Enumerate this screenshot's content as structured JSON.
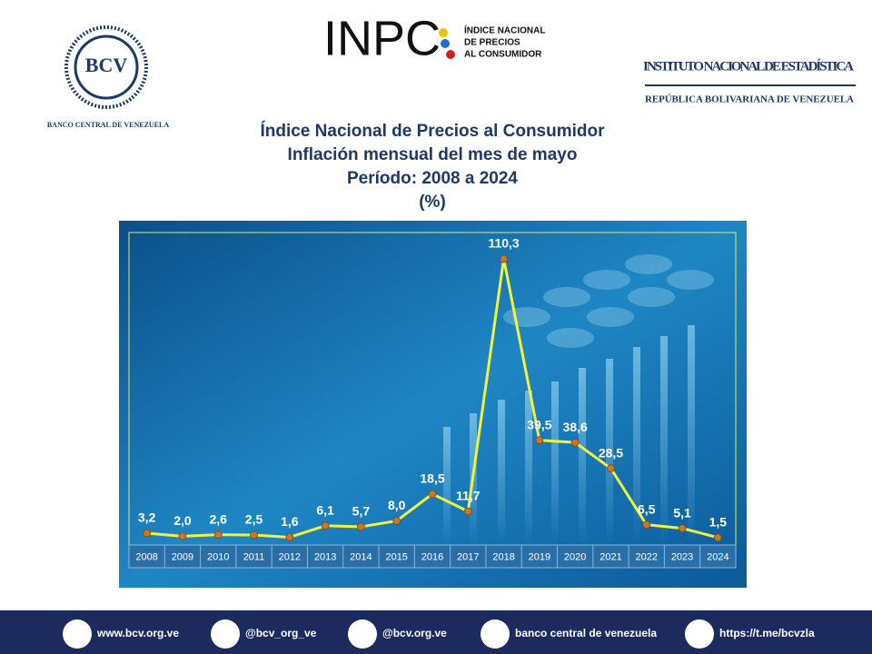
{
  "header": {
    "bcv_logo": "BCV",
    "bcv_name": "BANCO CENTRAL DE VENEZUELA",
    "inpc_logo": "INPC",
    "inpc_name": [
      "ÍNDICE NACIONAL",
      "DE PRECIOS",
      "AL CONSUMIDOR"
    ],
    "ine_name": "INSTITUTO NACIONAL DE ESTADÍSTICA",
    "ine_country": "REPÚBLICA BOLIVARIANA DE VENEZUELA"
  },
  "chart_data": {
    "type": "line",
    "title": [
      "Índice Nacional de Precios al Consumidor",
      "Inflación mensual del mes de mayo",
      "Período: 2008 a 2024",
      "(%)"
    ],
    "categories": [
      "2008",
      "2009",
      "2010",
      "2011",
      "2012",
      "2013",
      "2014",
      "2015",
      "2016",
      "2017",
      "2018",
      "2019",
      "2020",
      "2021",
      "2022",
      "2023",
      "2024"
    ],
    "values": [
      3.2,
      2.0,
      2.6,
      2.5,
      1.6,
      6.1,
      5.7,
      8.0,
      18.5,
      11.7,
      110.3,
      39.5,
      38.6,
      28.5,
      6.5,
      5.1,
      1.5
    ],
    "value_labels": [
      "3,2",
      "2,0",
      "2,6",
      "2,5",
      "1,6",
      "6,1",
      "5,7",
      "8,0",
      "18,5",
      "11,7",
      "110,3",
      "39,5",
      "38,6",
      "28,5",
      "6,5",
      "5,1",
      "1,5"
    ],
    "color": "#f2f23a",
    "marker_color": "#c8782a"
  },
  "footer": {
    "links": [
      "www.bcv.org.ve",
      "@bcv_org_ve",
      "@bcv.org.ve",
      "banco central de venezuela",
      "https://t.me/bcvzla"
    ]
  }
}
